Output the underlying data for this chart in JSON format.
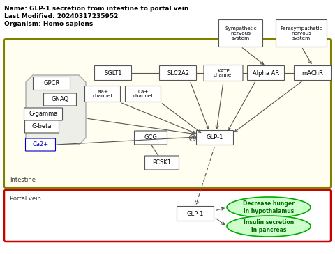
{
  "title_line1": "Name: GLP-1 secretion from intestine to portal vein",
  "title_line2": "Last Modified: 20240317235952",
  "title_line3": "Organism: Homo sapiens",
  "bg_color": "#ffffff",
  "intestine_color": "#808000",
  "portal_color": "#cc0000"
}
